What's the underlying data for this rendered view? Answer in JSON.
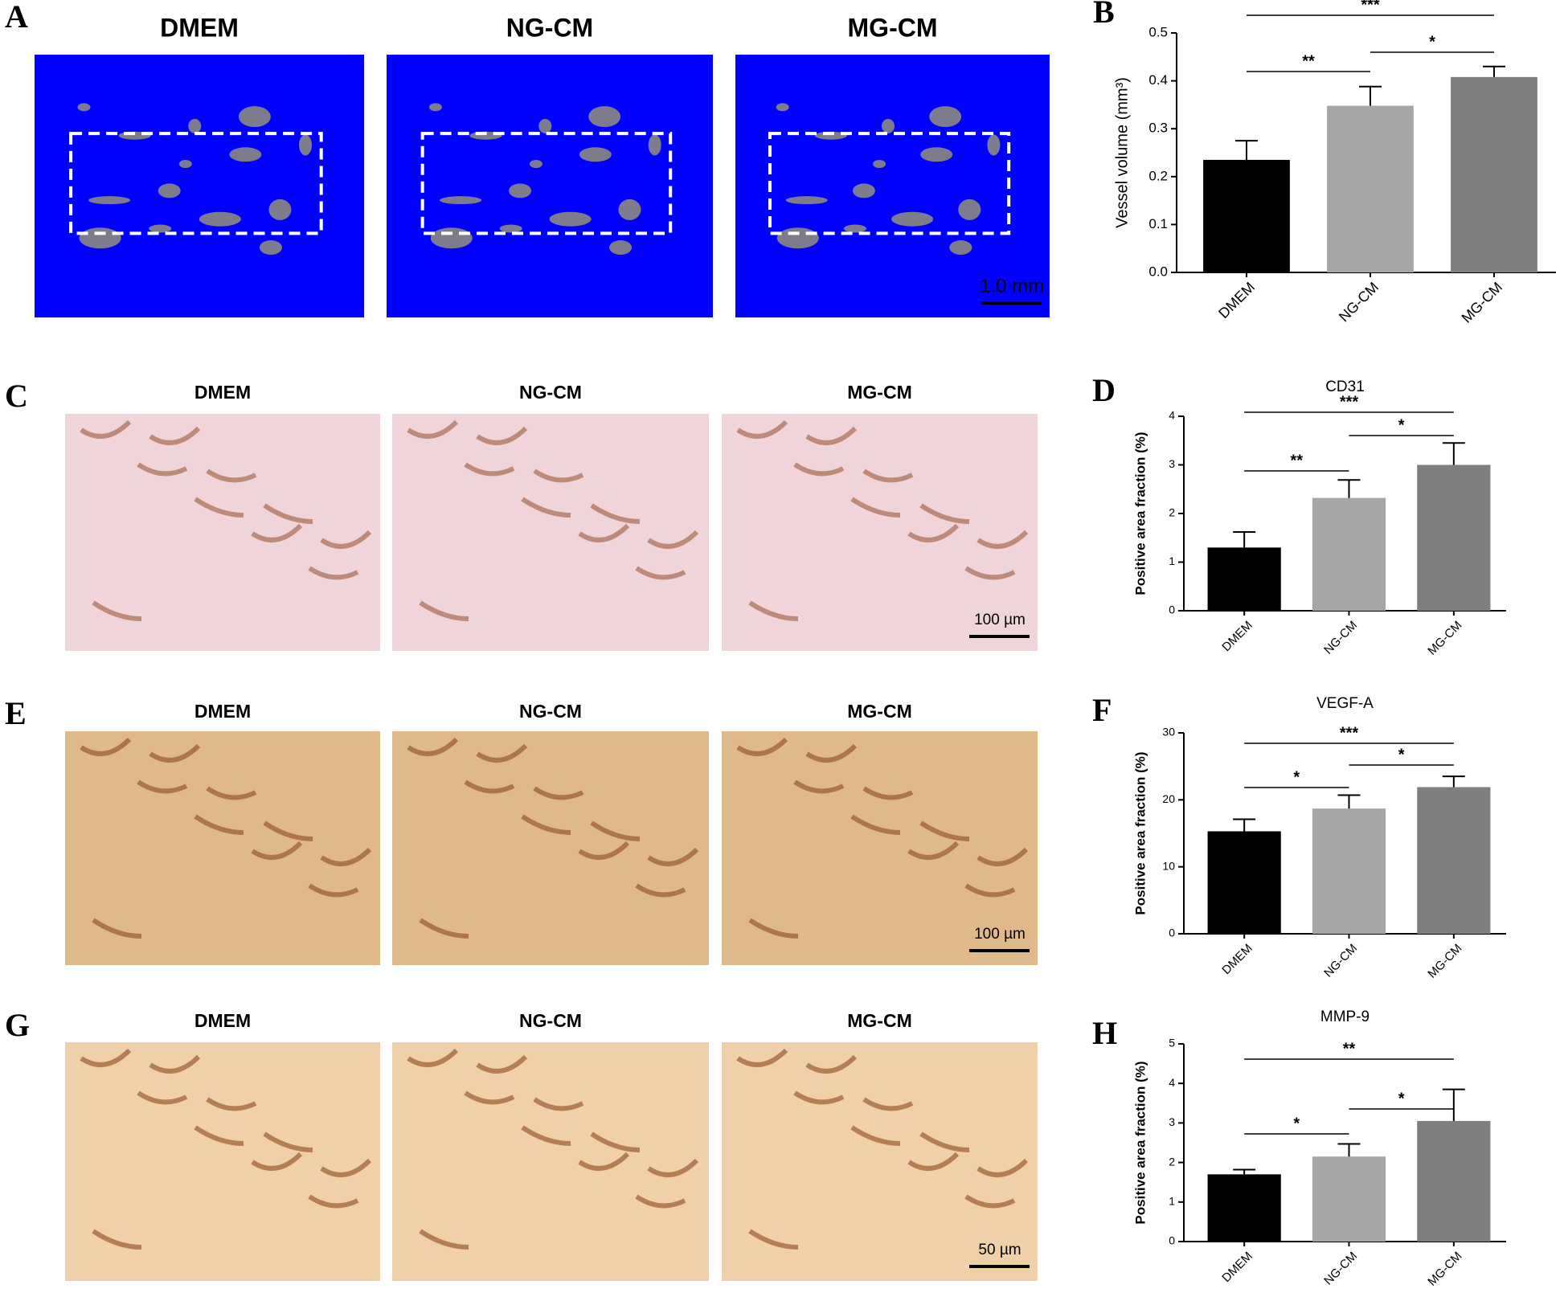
{
  "figure_rows": [
    {
      "label": "A",
      "columns": [
        "DMEM",
        "NG-CM",
        "MG-CM"
      ],
      "scale_bar": "1.0 mm"
    },
    {
      "label": "C",
      "columns": [
        "DMEM",
        "NG-CM",
        "MG-CM"
      ],
      "scale_bar": "100 µm"
    },
    {
      "label": "E",
      "columns": [
        "DMEM",
        "NG-CM",
        "MG-CM"
      ],
      "scale_bar": "100 µm"
    },
    {
      "label": "G",
      "columns": [
        "DMEM",
        "NG-CM",
        "MG-CM"
      ],
      "scale_bar": "50 µm"
    }
  ],
  "chart_data": [
    {
      "type": "bar",
      "panel": "B",
      "ylabel": "Vessel volume (mm³)",
      "categories": [
        "DMEM",
        "NG-CM",
        "MG-CM"
      ],
      "values": [
        0.235,
        0.348,
        0.408
      ],
      "errors": [
        0.04,
        0.04,
        0.022
      ],
      "colors": [
        "#000000",
        "#a6a6a6",
        "#7f7f7f"
      ],
      "ylim": [
        0,
        0.5
      ],
      "yticks": [
        {
          "value": 0,
          "label": "0.0"
        },
        0.1,
        0.2,
        0.3,
        0.4,
        0.5
      ],
      "significance": [
        {
          "pair": [
            "DMEM",
            "NG-CM"
          ],
          "label": "**"
        },
        {
          "pair": [
            "NG-CM",
            "MG-CM"
          ],
          "label": "*"
        },
        {
          "pair": [
            "DMEM",
            "MG-CM"
          ],
          "label": "***"
        }
      ]
    },
    {
      "type": "bar",
      "panel": "D",
      "title": "CD31",
      "ylabel": "Positive area fraction (%)",
      "categories": [
        "DMEM",
        "NG-CM",
        "MG-CM"
      ],
      "values": [
        1.3,
        2.32,
        3.0
      ],
      "errors": [
        0.32,
        0.37,
        0.45
      ],
      "colors": [
        "#000000",
        "#a6a6a6",
        "#7f7f7f"
      ],
      "ylim": [
        0,
        4
      ],
      "yticks": [
        0,
        1,
        2,
        3,
        4
      ],
      "significance": [
        {
          "pair": [
            "DMEM",
            "NG-CM"
          ],
          "label": "**"
        },
        {
          "pair": [
            "NG-CM",
            "MG-CM"
          ],
          "label": "*"
        },
        {
          "pair": [
            "DMEM",
            "MG-CM"
          ],
          "label": "***"
        }
      ]
    },
    {
      "type": "bar",
      "panel": "F",
      "title": "VEGF-A",
      "ylabel": "Positive area fraction (%)",
      "categories": [
        "DMEM",
        "NG-CM",
        "MG-CM"
      ],
      "values": [
        15.3,
        18.7,
        21.9
      ],
      "errors": [
        1.8,
        2.0,
        1.6
      ],
      "colors": [
        "#000000",
        "#a6a6a6",
        "#7f7f7f"
      ],
      "ylim": [
        0,
        30
      ],
      "yticks": [
        0,
        10,
        20,
        30
      ],
      "significance": [
        {
          "pair": [
            "DMEM",
            "NG-CM"
          ],
          "label": "*"
        },
        {
          "pair": [
            "NG-CM",
            "MG-CM"
          ],
          "label": "*"
        },
        {
          "pair": [
            "DMEM",
            "MG-CM"
          ],
          "label": "***"
        }
      ]
    },
    {
      "type": "bar",
      "panel": "H",
      "title": "MMP-9",
      "ylabel": "Positive area fraction (%)",
      "categories": [
        "DMEM",
        "NG-CM",
        "MG-CM"
      ],
      "values": [
        1.7,
        2.15,
        3.05
      ],
      "errors": [
        0.12,
        0.32,
        0.8
      ],
      "colors": [
        "#000000",
        "#a6a6a6",
        "#7f7f7f"
      ],
      "ylim": [
        0,
        5
      ],
      "yticks": [
        0,
        1,
        2,
        3,
        4,
        5
      ],
      "significance": [
        {
          "pair": [
            "DMEM",
            "NG-CM"
          ],
          "label": "*"
        },
        {
          "pair": [
            "NG-CM",
            "MG-CM"
          ],
          "label": "*"
        },
        {
          "pair": [
            "DMEM",
            "MG-CM"
          ],
          "label": "**"
        }
      ]
    }
  ]
}
